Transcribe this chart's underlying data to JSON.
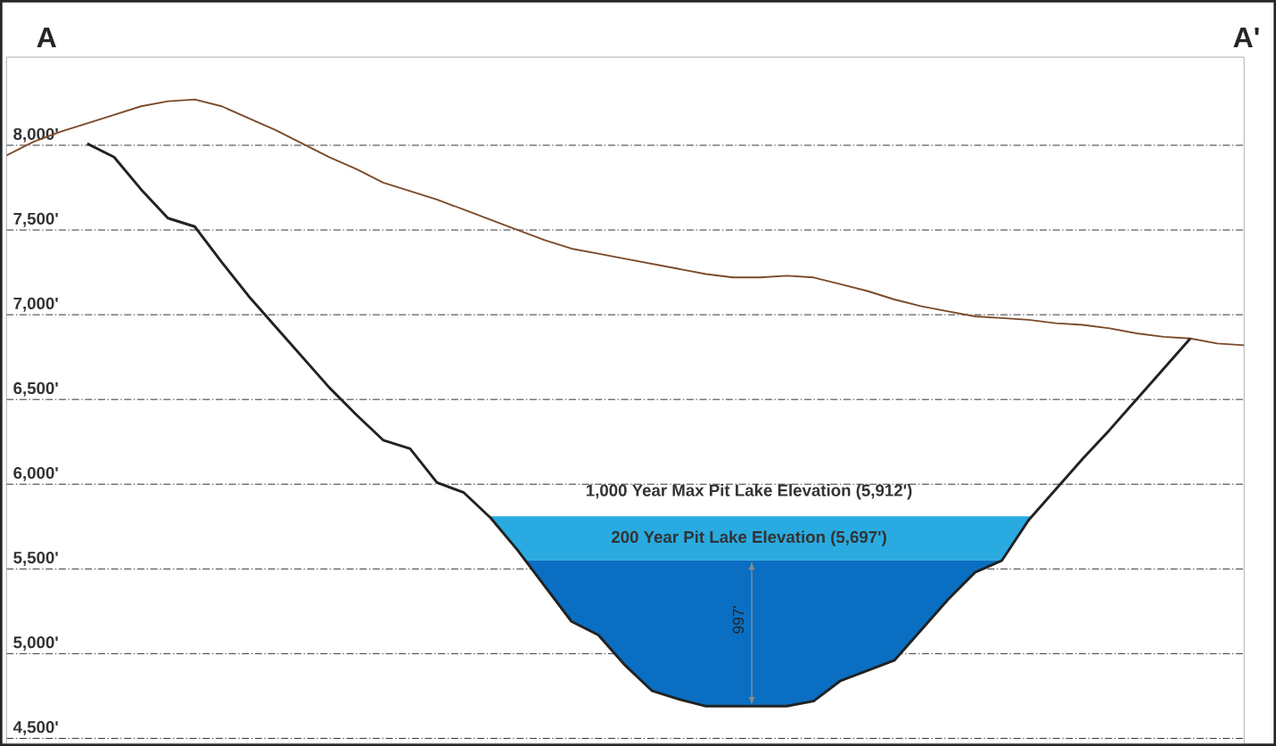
{
  "chart_data": {
    "type": "line",
    "categories": [
      null,
      null,
      null,
      null,
      null,
      null,
      null,
      null,
      null,
      null,
      null,
      null,
      null,
      null,
      null,
      null,
      null,
      null,
      null,
      null,
      null,
      null,
      null,
      null,
      null,
      null,
      null,
      null,
      null,
      null,
      null,
      null,
      null,
      null,
      null,
      null,
      null,
      null,
      null,
      null,
      null,
      null,
      null,
      null,
      null,
      null,
      null
    ],
    "series": [
      {
        "color": "#7b4a2a",
        "values": [
          7940,
          8020,
          8080,
          8130,
          8180,
          8230,
          8260,
          8270,
          8230,
          8160,
          8090,
          8010,
          7930,
          7860,
          7780,
          7730,
          7680,
          7620,
          7560,
          7500,
          7440,
          7390,
          7360,
          7330,
          7300,
          7270,
          7240,
          7220,
          7220,
          7230,
          7220,
          7180,
          7140,
          7090,
          7050,
          7020,
          6990,
          6980,
          6970,
          6950,
          6940,
          6920,
          6890,
          6870,
          6860,
          6830,
          6820
        ]
      },
      {
        "color": "#222222",
        "values": [
          null,
          null,
          null,
          8010,
          7930,
          7740,
          7570,
          7520,
          7310,
          7110,
          6930,
          6750,
          6570,
          6410,
          6260,
          6210,
          6010,
          5950,
          5800,
          5610,
          5400,
          5190,
          5110,
          4930,
          4780,
          4730,
          4690,
          4690,
          4690,
          4690,
          4720,
          4840,
          4900,
          4960,
          5140,
          5320,
          5480,
          5550,
          5790,
          5970,
          6150,
          6320,
          6500,
          6680,
          6860,
          null,
          null
        ]
      }
    ],
    "bands": [
      {
        "axis": "y",
        "from": 5550,
        "to": 5810,
        "color": "#29abe2"
      },
      {
        "axis": "y",
        "from": 4690,
        "to": 5550,
        "color": "#0a6fc2"
      }
    ],
    "ylim": [
      4470,
      8520
    ],
    "yticks": [
      {
        "value": 4500,
        "label": "4,500'"
      },
      {
        "value": 5000,
        "label": "5,000'"
      },
      {
        "value": 5500,
        "label": "5,500'"
      },
      {
        "value": 6000,
        "label": "6,000'"
      },
      {
        "value": 6500,
        "label": "6,500'"
      },
      {
        "value": 7000,
        "label": "7,000'"
      },
      {
        "value": 7500,
        "label": "7,500'"
      },
      {
        "value": 8000,
        "label": "8,000'"
      }
    ],
    "grid": "y",
    "tick_labels": "y",
    "annotations": [
      "A",
      "A'",
      "1,000 Year Max Pit Lake Elevation (5,912')",
      "200 Year Pit Lake Elevation (5,697')",
      "997'"
    ]
  }
}
